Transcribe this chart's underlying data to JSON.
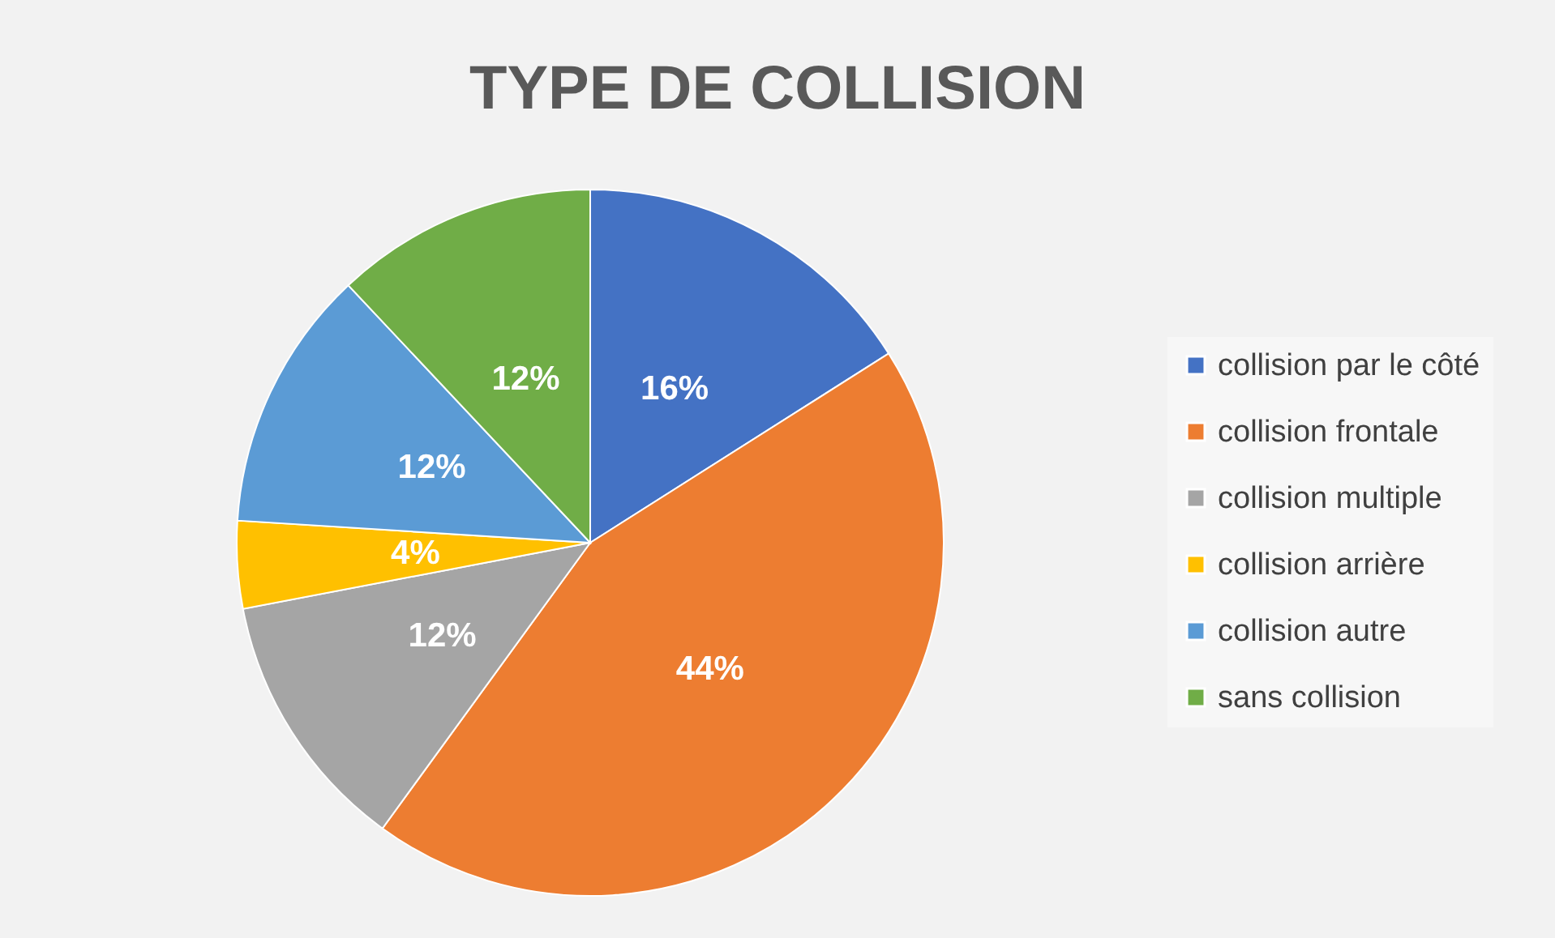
{
  "chart_data": {
    "type": "pie",
    "title": "TYPE DE COLLISION",
    "categories": [
      "collision par le côté",
      "collision frontale",
      "collision multiple",
      "collision arrière",
      "collision autre",
      "sans collision"
    ],
    "values": [
      16,
      44,
      12,
      4,
      12,
      12
    ],
    "value_labels": [
      "16%",
      "44%",
      "12%",
      "4%",
      "12%",
      "12%"
    ],
    "colors": [
      "#4472c4",
      "#ed7d31",
      "#a5a5a5",
      "#ffc000",
      "#5b9bd5",
      "#70ad47"
    ],
    "legend": "right"
  }
}
